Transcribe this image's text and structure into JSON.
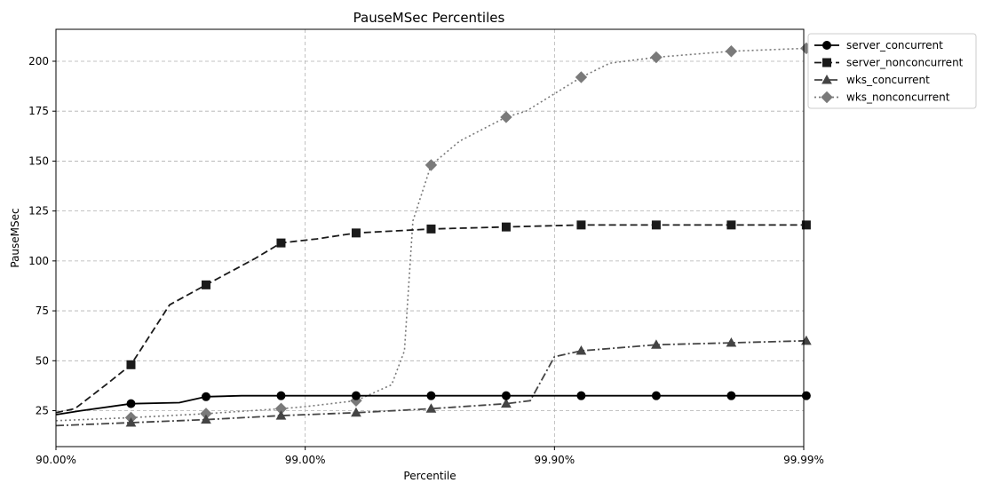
{
  "chart_data": {
    "type": "line",
    "title": "PauseMSec Percentiles",
    "xlabel": "Percentile",
    "ylabel": "PauseMSec",
    "x_scale": "log-percentile",
    "x_ticks": [
      "90.00%",
      "99.00%",
      "99.90%",
      "99.99%"
    ],
    "y_ticks": [
      25,
      50,
      75,
      100,
      125,
      150,
      175,
      200
    ],
    "ylim": [
      7,
      216
    ],
    "grid": true,
    "legend_position": "top-right, outside plot",
    "x_unit": "percentile",
    "x_marker_values": [
      90.0,
      95.0,
      97.5,
      98.75,
      99.375,
      99.6875,
      99.84375,
      99.921875,
      99.9609375,
      99.98046875,
      99.990234375
    ],
    "series": [
      {
        "name": "server_concurrent",
        "marker": "circle",
        "dash": "solid",
        "color": "#000000",
        "points": [
          [
            90.0,
            23
          ],
          [
            92.1,
            25
          ],
          [
            95.0,
            28.5
          ],
          [
            96.8,
            29
          ],
          [
            97.5,
            32
          ],
          [
            98.2,
            32.5
          ],
          [
            98.75,
            32.5
          ],
          [
            99.375,
            32.5
          ],
          [
            99.6875,
            32.5
          ],
          [
            99.84375,
            32.5
          ],
          [
            99.921875,
            32.5
          ],
          [
            99.9609375,
            32.5
          ],
          [
            99.98046875,
            32.5
          ],
          [
            99.990234375,
            32.5
          ]
        ]
      },
      {
        "name": "server_nonconcurrent",
        "marker": "square",
        "dash": "dashed",
        "color": "#1a1a1a",
        "points": [
          [
            90.0,
            24
          ],
          [
            91.6,
            26
          ],
          [
            93.7,
            38
          ],
          [
            95.0,
            48
          ],
          [
            96.5,
            78
          ],
          [
            97.5,
            88
          ],
          [
            98.4,
            101
          ],
          [
            98.75,
            109
          ],
          [
            99.1,
            111
          ],
          [
            99.375,
            114
          ],
          [
            99.6875,
            116
          ],
          [
            99.84375,
            117
          ],
          [
            99.921875,
            118
          ],
          [
            99.9609375,
            118
          ],
          [
            99.98046875,
            118
          ],
          [
            99.990234375,
            118
          ]
        ]
      },
      {
        "name": "wks_concurrent",
        "marker": "triangle",
        "dash": "dashdot",
        "color": "#444444",
        "points": [
          [
            90.0,
            17.5
          ],
          [
            95.0,
            19
          ],
          [
            97.5,
            20.5
          ],
          [
            98.75,
            22.5
          ],
          [
            99.375,
            24
          ],
          [
            99.6875,
            26
          ],
          [
            99.84375,
            28.5
          ],
          [
            99.875,
            30
          ],
          [
            99.9,
            52
          ],
          [
            99.921875,
            55
          ],
          [
            99.9609375,
            58
          ],
          [
            99.98046875,
            59
          ],
          [
            99.990234375,
            60
          ]
        ]
      },
      {
        "name": "wks_nonconcurrent",
        "marker": "diamond",
        "dash": "dotted",
        "color": "#7a7a7a",
        "points": [
          [
            90.0,
            20
          ],
          [
            95.0,
            21.5
          ],
          [
            97.5,
            23.5
          ],
          [
            98.75,
            26
          ],
          [
            99.0,
            27
          ],
          [
            99.375,
            30
          ],
          [
            99.55,
            38
          ],
          [
            99.6,
            55
          ],
          [
            99.63,
            120
          ],
          [
            99.6875,
            148
          ],
          [
            99.76,
            160
          ],
          [
            99.84375,
            172
          ],
          [
            99.87,
            175
          ],
          [
            99.921875,
            192
          ],
          [
            99.94,
            199
          ],
          [
            99.9609375,
            202
          ],
          [
            99.98046875,
            205
          ],
          [
            99.990234375,
            206.5
          ]
        ]
      }
    ]
  }
}
